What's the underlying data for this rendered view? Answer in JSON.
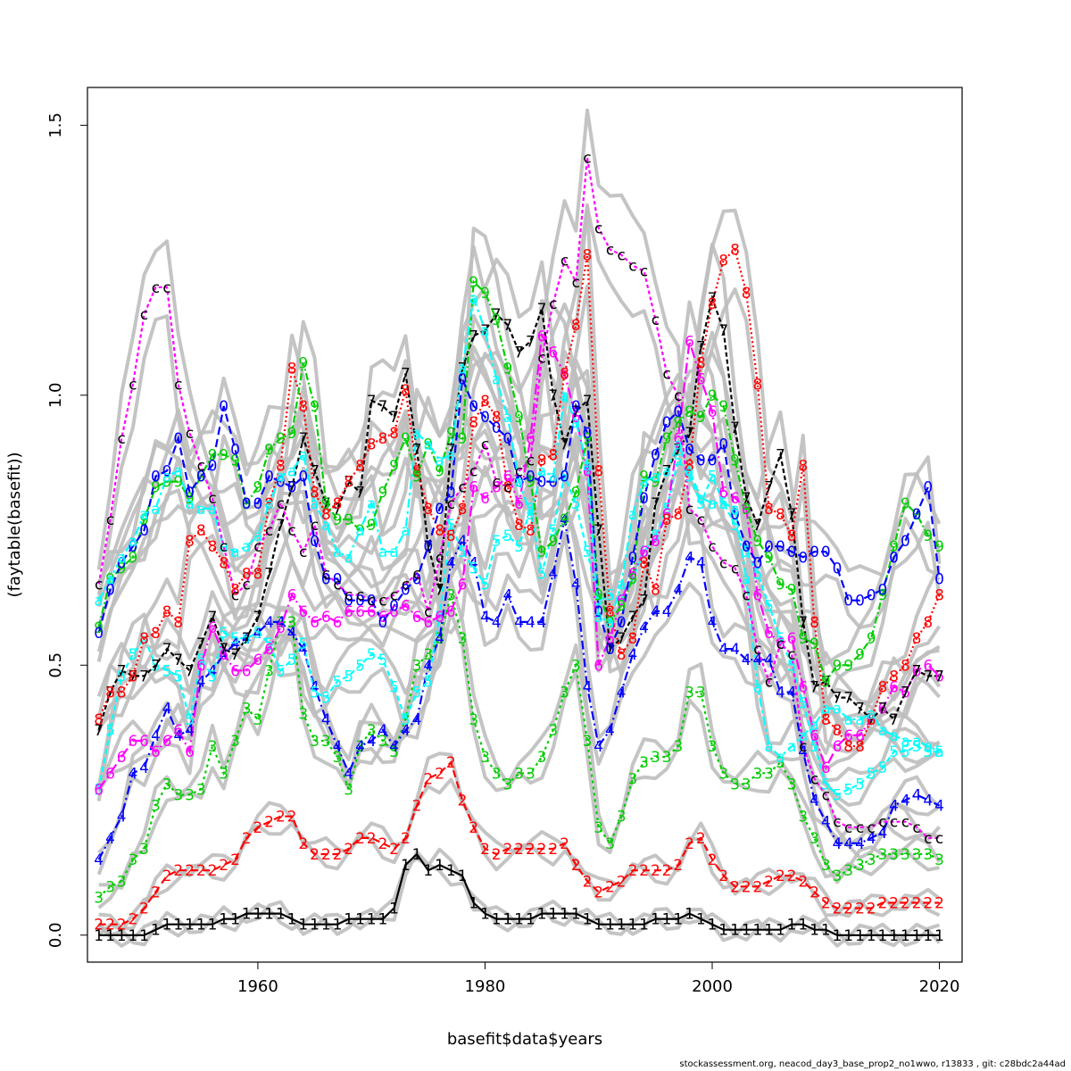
{
  "chart_data": {
    "type": "line",
    "title": "",
    "xlabel": "basefit$data$years",
    "ylabel": "(faytable(basefit))",
    "xlim": [
      1945,
      2022
    ],
    "ylim": [
      -0.05,
      1.57
    ],
    "x_ticks": [
      1960,
      1980,
      2000,
      2020
    ],
    "x_tick_labels": [
      "1960",
      "1980",
      "2000",
      "2020"
    ],
    "y_ticks": [
      0.0,
      0.5,
      1.0,
      1.5
    ],
    "y_tick_labels": [
      "0.0",
      "0.5",
      "1.0",
      "1.5"
    ],
    "grid": false,
    "legend": "none",
    "x": [
      1946,
      1947,
      1948,
      1949,
      1950,
      1951,
      1952,
      1953,
      1954,
      1955,
      1956,
      1957,
      1958,
      1959,
      1960,
      1961,
      1962,
      1963,
      1964,
      1965,
      1966,
      1967,
      1968,
      1969,
      1970,
      1971,
      1972,
      1973,
      1974,
      1975,
      1976,
      1977,
      1978,
      1979,
      1980,
      1981,
      1982,
      1983,
      1984,
      1985,
      1986,
      1987,
      1988,
      1989,
      1990,
      1991,
      1992,
      1993,
      1994,
      1995,
      1996,
      1997,
      1998,
      1999,
      2000,
      2001,
      2002,
      2003,
      2004,
      2005,
      2006,
      2007,
      2008,
      2009,
      2010,
      2011,
      2012,
      2013,
      2014,
      2015,
      2016,
      2017,
      2018,
      2019,
      2020
    ],
    "series": [
      {
        "label_char": "1",
        "color": "#000000",
        "values": [
          0.0,
          0.0,
          0.0,
          0.0,
          0.0,
          0.01,
          0.02,
          0.02,
          0.02,
          0.02,
          0.02,
          0.03,
          0.03,
          0.04,
          0.04,
          0.04,
          0.04,
          0.03,
          0.02,
          0.02,
          0.02,
          0.02,
          0.03,
          0.03,
          0.03,
          0.03,
          0.05,
          0.13,
          0.15,
          0.12,
          0.13,
          0.12,
          0.11,
          0.06,
          0.04,
          0.03,
          0.03,
          0.03,
          0.03,
          0.04,
          0.04,
          0.04,
          0.04,
          0.03,
          0.02,
          0.02,
          0.02,
          0.02,
          0.02,
          0.03,
          0.03,
          0.03,
          0.04,
          0.03,
          0.02,
          0.01,
          0.01,
          0.01,
          0.01,
          0.01,
          0.01,
          0.02,
          0.02,
          0.01,
          0.01,
          0.0,
          0.0,
          0.0,
          0.0,
          0.0,
          0.0,
          0.0,
          0.0,
          0.0,
          0.0
        ]
      },
      {
        "label_char": "2",
        "color": "#ff0000",
        "values": [
          0.02,
          0.02,
          0.02,
          0.03,
          0.05,
          0.08,
          0.11,
          0.12,
          0.12,
          0.12,
          0.12,
          0.13,
          0.14,
          0.18,
          0.2,
          0.21,
          0.22,
          0.22,
          0.17,
          0.15,
          0.15,
          0.15,
          0.16,
          0.18,
          0.18,
          0.17,
          0.16,
          0.18,
          0.24,
          0.29,
          0.3,
          0.32,
          0.25,
          0.2,
          0.16,
          0.15,
          0.16,
          0.16,
          0.16,
          0.16,
          0.16,
          0.17,
          0.13,
          0.1,
          0.08,
          0.09,
          0.1,
          0.12,
          0.12,
          0.12,
          0.12,
          0.13,
          0.17,
          0.18,
          0.14,
          0.11,
          0.09,
          0.09,
          0.09,
          0.1,
          0.11,
          0.11,
          0.1,
          0.08,
          0.06,
          0.05,
          0.05,
          0.05,
          0.05,
          0.06,
          0.06,
          0.06,
          0.06,
          0.06,
          0.06
        ]
      },
      {
        "label_char": "3",
        "color": "#00cd00",
        "values": [
          0.07,
          0.09,
          0.1,
          0.14,
          0.16,
          0.24,
          0.28,
          0.26,
          0.26,
          0.27,
          0.35,
          0.3,
          0.36,
          0.42,
          0.4,
          0.49,
          0.58,
          0.58,
          0.41,
          0.36,
          0.36,
          0.33,
          0.27,
          0.35,
          0.38,
          0.36,
          0.34,
          0.4,
          0.5,
          0.52,
          0.55,
          0.63,
          0.55,
          0.4,
          0.33,
          0.3,
          0.28,
          0.3,
          0.3,
          0.33,
          0.38,
          0.45,
          0.5,
          0.36,
          0.2,
          0.17,
          0.22,
          0.29,
          0.32,
          0.33,
          0.33,
          0.35,
          0.45,
          0.45,
          0.35,
          0.3,
          0.28,
          0.28,
          0.3,
          0.3,
          0.32,
          0.28,
          0.22,
          0.18,
          0.13,
          0.11,
          0.12,
          0.13,
          0.14,
          0.15,
          0.15,
          0.15,
          0.15,
          0.15,
          0.14
        ]
      },
      {
        "label_char": "4",
        "color": "#0000ff",
        "values": [
          0.14,
          0.18,
          0.22,
          0.3,
          0.31,
          0.37,
          0.42,
          0.37,
          0.38,
          0.47,
          0.49,
          0.52,
          0.54,
          0.55,
          0.56,
          0.58,
          0.58,
          0.56,
          0.53,
          0.46,
          0.4,
          0.35,
          0.3,
          0.35,
          0.36,
          0.38,
          0.35,
          0.38,
          0.4,
          0.5,
          0.55,
          0.69,
          0.73,
          0.69,
          0.59,
          0.58,
          0.63,
          0.58,
          0.58,
          0.58,
          0.67,
          0.77,
          0.65,
          0.46,
          0.35,
          0.38,
          0.45,
          0.52,
          0.57,
          0.6,
          0.6,
          0.64,
          0.7,
          0.69,
          0.58,
          0.53,
          0.53,
          0.51,
          0.51,
          0.51,
          0.45,
          0.45,
          0.34,
          0.25,
          0.21,
          0.17,
          0.17,
          0.17,
          0.18,
          0.19,
          0.24,
          0.25,
          0.26,
          0.25,
          0.24
        ]
      },
      {
        "label_char": "5",
        "color": "#00ffff",
        "values": [
          0.27,
          0.38,
          0.48,
          0.52,
          0.55,
          0.5,
          0.49,
          0.48,
          0.4,
          0.51,
          0.48,
          0.56,
          0.55,
          0.55,
          0.56,
          0.54,
          0.49,
          0.51,
          0.54,
          0.45,
          0.44,
          0.47,
          0.48,
          0.5,
          0.52,
          0.51,
          0.46,
          0.4,
          0.45,
          0.47,
          0.59,
          0.76,
          0.71,
          0.68,
          0.65,
          0.73,
          0.74,
          0.72,
          0.79,
          0.67,
          0.75,
          0.85,
          0.8,
          0.71,
          0.62,
          0.63,
          0.62,
          0.66,
          0.71,
          0.74,
          0.79,
          0.88,
          0.85,
          0.8,
          0.85,
          0.8,
          0.76,
          0.71,
          0.67,
          0.61,
          0.55,
          0.5,
          0.43,
          0.35,
          0.28,
          0.26,
          0.27,
          0.28,
          0.3,
          0.31,
          0.34,
          0.34,
          0.35,
          0.34,
          0.34
        ]
      },
      {
        "label_char": "6",
        "color": "#ff00ff",
        "values": [
          0.27,
          0.3,
          0.33,
          0.36,
          0.36,
          0.34,
          0.36,
          0.38,
          0.34,
          0.5,
          0.57,
          0.52,
          0.49,
          0.49,
          0.51,
          0.53,
          0.57,
          0.63,
          0.6,
          0.58,
          0.59,
          0.58,
          0.6,
          0.6,
          0.6,
          0.59,
          0.6,
          0.61,
          0.59,
          0.58,
          0.59,
          0.6,
          0.65,
          0.83,
          0.81,
          0.83,
          0.85,
          0.8,
          0.92,
          1.11,
          1.08,
          1.04,
          0.96,
          0.86,
          0.5,
          0.55,
          0.62,
          0.67,
          0.71,
          0.73,
          0.78,
          0.92,
          1.1,
          1.03,
          0.97,
          0.82,
          0.81,
          0.79,
          0.63,
          0.56,
          0.54,
          0.55,
          0.46,
          0.37,
          0.31,
          0.35,
          0.37,
          0.37,
          0.4,
          0.42,
          0.46,
          0.45,
          0.49,
          0.5,
          0.48
        ]
      },
      {
        "label_char": "7",
        "color": "#000000",
        "values": [
          0.38,
          0.45,
          0.49,
          0.48,
          0.48,
          0.5,
          0.53,
          0.51,
          0.49,
          0.54,
          0.59,
          0.53,
          0.52,
          0.55,
          0.59,
          0.67,
          0.76,
          0.83,
          0.92,
          0.86,
          0.8,
          0.79,
          0.84,
          0.82,
          0.99,
          0.98,
          0.96,
          1.04,
          0.9,
          0.72,
          0.64,
          0.9,
          1.05,
          1.11,
          1.12,
          1.15,
          1.13,
          1.08,
          1.1,
          1.16,
          1.0,
          0.91,
          0.97,
          0.99,
          0.75,
          0.53,
          0.55,
          0.59,
          0.62,
          0.8,
          0.86,
          0.9,
          0.93,
          1.09,
          1.18,
          1.12,
          0.94,
          0.81,
          0.76,
          0.83,
          0.89,
          0.78,
          0.58,
          0.46,
          0.47,
          0.44,
          0.44,
          0.42,
          0.4,
          0.42,
          0.4,
          0.45,
          0.49,
          0.48,
          0.48
        ]
      },
      {
        "label_char": "8",
        "color": "#ff0000",
        "values": [
          0.4,
          0.45,
          0.45,
          0.48,
          0.55,
          0.56,
          0.6,
          0.58,
          0.73,
          0.75,
          0.72,
          0.69,
          0.64,
          0.67,
          0.67,
          0.8,
          0.87,
          1.05,
          0.98,
          0.82,
          0.78,
          0.8,
          0.84,
          0.87,
          0.91,
          0.92,
          0.93,
          1.01,
          0.86,
          0.79,
          0.75,
          0.74,
          0.79,
          0.95,
          0.99,
          0.96,
          0.83,
          0.76,
          0.75,
          0.88,
          0.89,
          1.04,
          1.13,
          1.26,
          0.86,
          0.6,
          0.52,
          0.55,
          0.69,
          0.64,
          0.77,
          0.78,
          0.87,
          1.06,
          1.17,
          1.25,
          1.27,
          1.19,
          1.02,
          0.79,
          0.78,
          0.74,
          0.87,
          0.58,
          0.4,
          0.38,
          0.35,
          0.35,
          0.4,
          0.46,
          0.48,
          0.5,
          0.55,
          0.58,
          0.63
        ]
      },
      {
        "label_char": "9",
        "color": "#00cd00",
        "values": [
          0.57,
          0.66,
          0.68,
          0.7,
          0.77,
          0.83,
          0.84,
          0.84,
          0.81,
          0.85,
          0.89,
          0.89,
          0.88,
          0.8,
          0.83,
          0.9,
          0.92,
          0.93,
          1.06,
          0.98,
          0.8,
          0.77,
          0.77,
          0.75,
          0.76,
          0.82,
          0.87,
          0.92,
          0.85,
          0.91,
          0.86,
          0.93,
          0.92,
          1.21,
          1.19,
          1.14,
          1.05,
          0.96,
          0.84,
          0.71,
          0.73,
          0.77,
          0.82,
          0.92,
          0.63,
          0.58,
          0.61,
          0.66,
          0.85,
          0.84,
          0.92,
          0.95,
          0.97,
          0.96,
          1.0,
          0.98,
          0.88,
          0.79,
          0.73,
          0.7,
          0.65,
          0.64,
          0.55,
          0.54,
          0.47,
          0.5,
          0.5,
          0.52,
          0.55,
          0.63,
          0.72,
          0.8,
          0.78,
          0.74,
          0.72
        ]
      },
      {
        "label_char": "0",
        "color": "#0000ff",
        "values": [
          0.56,
          0.64,
          0.69,
          0.72,
          0.75,
          0.85,
          0.86,
          0.92,
          0.82,
          0.85,
          0.87,
          0.98,
          0.9,
          0.8,
          0.8,
          0.85,
          0.84,
          0.83,
          0.85,
          0.73,
          0.66,
          0.66,
          0.62,
          0.62,
          0.62,
          0.58,
          0.61,
          0.64,
          0.66,
          0.72,
          0.79,
          0.82,
          1.03,
          0.98,
          0.96,
          0.94,
          0.92,
          0.84,
          0.85,
          0.84,
          0.84,
          0.85,
          0.98,
          0.93,
          0.6,
          0.53,
          0.58,
          0.7,
          0.81,
          0.89,
          0.95,
          0.97,
          0.9,
          0.88,
          0.88,
          0.91,
          0.78,
          0.72,
          0.69,
          0.72,
          0.72,
          0.71,
          0.7,
          0.71,
          0.71,
          0.68,
          0.62,
          0.62,
          0.63,
          0.64,
          0.7,
          0.73,
          0.78,
          0.83,
          0.66
        ]
      },
      {
        "label_char": "a",
        "color": "#00ffff",
        "values": [
          0.62,
          0.66,
          0.7,
          0.73,
          0.78,
          0.79,
          0.85,
          0.86,
          0.8,
          0.79,
          0.79,
          0.72,
          0.71,
          0.72,
          0.74,
          0.8,
          0.85,
          0.86,
          0.89,
          0.8,
          0.76,
          0.71,
          0.7,
          0.75,
          0.8,
          0.71,
          0.71,
          0.75,
          0.93,
          0.91,
          0.88,
          0.89,
          1.05,
          1.18,
          1.12,
          1.03,
          0.96,
          0.84,
          0.78,
          0.86,
          0.85,
          1.0,
          0.95,
          0.87,
          0.59,
          0.58,
          0.65,
          0.78,
          0.84,
          0.85,
          0.86,
          0.91,
          0.86,
          0.81,
          0.8,
          0.8,
          0.79,
          0.66,
          0.46,
          0.35,
          0.33,
          0.35,
          0.37,
          0.39,
          0.42,
          0.42,
          0.4,
          0.4,
          0.41,
          0.38,
          0.37,
          0.36,
          0.36,
          0.35,
          0.34
        ]
      },
      {
        "label_char": "c",
        "color": "#000000",
        "line_color": "#ff00ff",
        "values": [
          0.65,
          0.77,
          0.92,
          1.02,
          1.15,
          1.2,
          1.2,
          1.02,
          0.93,
          0.87,
          0.81,
          0.72,
          0.63,
          0.65,
          0.72,
          0.75,
          0.8,
          0.75,
          0.71,
          0.76,
          0.67,
          0.65,
          0.63,
          0.63,
          0.62,
          0.62,
          0.63,
          0.65,
          0.67,
          0.6,
          0.7,
          0.8,
          0.83,
          0.86,
          0.91,
          0.84,
          0.83,
          0.86,
          0.88,
          1.07,
          1.17,
          1.25,
          1.21,
          1.44,
          1.31,
          1.27,
          1.26,
          1.24,
          1.23,
          1.14,
          1.04,
          1.0,
          0.79,
          0.77,
          0.72,
          0.69,
          0.68,
          0.63,
          0.53,
          0.47,
          0.54,
          0.52,
          0.35,
          0.29,
          0.26,
          0.21,
          0.2,
          0.2,
          0.2,
          0.21,
          0.21,
          0.21,
          0.2,
          0.18,
          0.18
        ]
      }
    ],
    "background_band_color": "#bebebe",
    "footer_text": "stockassessment.org, neacod_day3_base_prop2_no1wwo, r13833 , git: c28bdc2a44ad"
  }
}
